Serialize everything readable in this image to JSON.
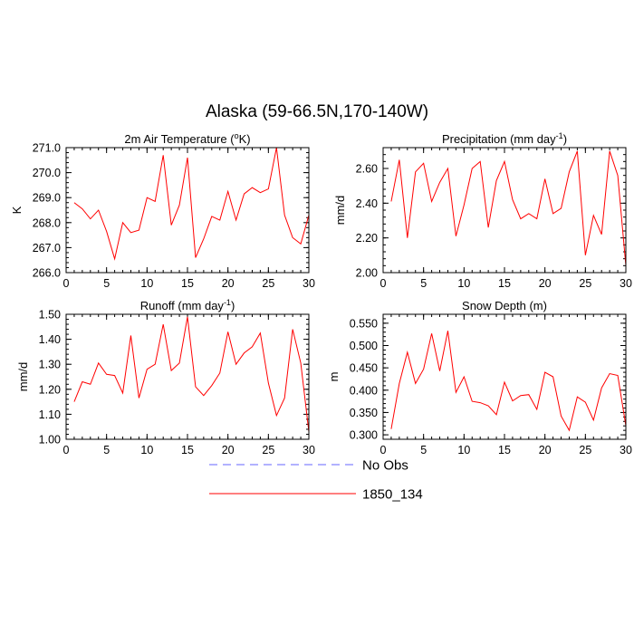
{
  "figure": {
    "title": "Alaska (59-66.5N,170-140W)"
  },
  "legend": {
    "position": "bottom-center",
    "entries": [
      {
        "label": "No Obs",
        "color": "#6666ff",
        "dash": "dashed"
      },
      {
        "label": "1850_134",
        "color": "#ff0000",
        "dash": "solid"
      }
    ]
  },
  "chart_data": [
    {
      "type": "line",
      "title": "2m Air Temperature (°K)",
      "title_parts": {
        "pre": "2m Air Temperature (",
        "sup": "o",
        "post": "K)"
      },
      "ylabel": "K",
      "xlim": [
        0,
        30
      ],
      "ylim": [
        266.0,
        271.0
      ],
      "xticks": [
        0,
        5,
        10,
        15,
        20,
        25,
        30
      ],
      "xtick_labels": [
        "0",
        "5",
        "10",
        "15",
        "20",
        "25",
        "30"
      ],
      "yticks": [
        266.0,
        267.0,
        268.0,
        269.0,
        270.0,
        271.0
      ],
      "ytick_labels": [
        "266.0",
        "267.0",
        "268.0",
        "269.0",
        "270.0",
        "271.0"
      ],
      "series": [
        {
          "name": "1850_134",
          "color": "#ff0000",
          "x": [
            1,
            2,
            3,
            4,
            5,
            6,
            7,
            8,
            9,
            10,
            11,
            12,
            13,
            14,
            15,
            16,
            17,
            18,
            19,
            20,
            21,
            22,
            23,
            24,
            25,
            26,
            27,
            28,
            29,
            30
          ],
          "y": [
            268.8,
            268.55,
            268.15,
            268.5,
            267.65,
            266.55,
            268.0,
            267.6,
            267.7,
            269.0,
            268.85,
            270.7,
            267.9,
            268.7,
            270.6,
            266.6,
            267.35,
            268.25,
            268.1,
            269.25,
            268.1,
            269.15,
            269.4,
            269.2,
            269.35,
            271.0,
            268.3,
            267.4,
            267.15,
            268.3
          ]
        }
      ]
    },
    {
      "type": "line",
      "title": "Precipitation (mm day-1)",
      "title_parts": {
        "pre": "Precipitation (mm day",
        "sup": "-1",
        "post": ")"
      },
      "ylabel": "mm/d",
      "xlim": [
        0,
        30
      ],
      "ylim": [
        2.0,
        2.72
      ],
      "xticks": [
        0,
        5,
        10,
        15,
        20,
        25,
        30
      ],
      "xtick_labels": [
        "0",
        "5",
        "10",
        "15",
        "20",
        "25",
        "30"
      ],
      "yticks": [
        2.0,
        2.2,
        2.4,
        2.6
      ],
      "ytick_labels": [
        "2.00",
        "2.20",
        "2.40",
        "2.60"
      ],
      "series": [
        {
          "name": "1850_134",
          "color": "#ff0000",
          "x": [
            1,
            2,
            3,
            4,
            5,
            6,
            7,
            8,
            9,
            10,
            11,
            12,
            13,
            14,
            15,
            16,
            17,
            18,
            19,
            20,
            21,
            22,
            23,
            24,
            25,
            26,
            27,
            28,
            29,
            30
          ],
          "y": [
            2.41,
            2.65,
            2.2,
            2.58,
            2.63,
            2.41,
            2.52,
            2.6,
            2.21,
            2.39,
            2.6,
            2.64,
            2.26,
            2.53,
            2.64,
            2.42,
            2.31,
            2.34,
            2.31,
            2.54,
            2.34,
            2.37,
            2.58,
            2.7,
            2.1,
            2.33,
            2.22,
            2.7,
            2.56,
            2.04
          ]
        }
      ]
    },
    {
      "type": "line",
      "title": "Runoff (mm day-1)",
      "title_parts": {
        "pre": "Runoff (mm day",
        "sup": "-1",
        "post": ")"
      },
      "ylabel": "mm/d",
      "xlim": [
        0,
        30
      ],
      "ylim": [
        1.0,
        1.5
      ],
      "xticks": [
        0,
        5,
        10,
        15,
        20,
        25,
        30
      ],
      "xtick_labels": [
        "0",
        "5",
        "10",
        "15",
        "20",
        "25",
        "30"
      ],
      "yticks": [
        1.0,
        1.1,
        1.2,
        1.3,
        1.4,
        1.5
      ],
      "ytick_labels": [
        "1.00",
        "1.10",
        "1.20",
        "1.30",
        "1.40",
        "1.50"
      ],
      "series": [
        {
          "name": "1850_134",
          "color": "#ff0000",
          "x": [
            1,
            2,
            3,
            4,
            5,
            6,
            7,
            8,
            9,
            10,
            11,
            12,
            13,
            14,
            15,
            16,
            17,
            18,
            19,
            20,
            21,
            22,
            23,
            24,
            25,
            26,
            27,
            28,
            29,
            30
          ],
          "y": [
            1.15,
            1.23,
            1.22,
            1.305,
            1.26,
            1.255,
            1.185,
            1.415,
            1.165,
            1.28,
            1.3,
            1.46,
            1.275,
            1.305,
            1.49,
            1.21,
            1.175,
            1.215,
            1.265,
            1.43,
            1.3,
            1.345,
            1.37,
            1.425,
            1.225,
            1.095,
            1.165,
            1.44,
            1.305,
            1.03
          ]
        }
      ]
    },
    {
      "type": "line",
      "title": "Snow Depth (m)",
      "title_parts": {
        "pre": "Snow Depth (m)",
        "sup": "",
        "post": ""
      },
      "ylabel": "m",
      "xlim": [
        0,
        30
      ],
      "ylim": [
        0.29,
        0.57
      ],
      "xticks": [
        0,
        5,
        10,
        15,
        20,
        25,
        30
      ],
      "xtick_labels": [
        "0",
        "5",
        "10",
        "15",
        "20",
        "25",
        "30"
      ],
      "yticks": [
        0.3,
        0.35,
        0.4,
        0.45,
        0.5,
        0.55
      ],
      "ytick_labels": [
        "0.300",
        "0.350",
        "0.400",
        "0.450",
        "0.500",
        "0.550"
      ],
      "series": [
        {
          "name": "1850_134",
          "color": "#ff0000",
          "x": [
            1,
            2,
            3,
            4,
            5,
            6,
            7,
            8,
            9,
            10,
            11,
            12,
            13,
            14,
            15,
            16,
            17,
            18,
            19,
            20,
            21,
            22,
            23,
            24,
            25,
            26,
            27,
            28,
            29,
            30
          ],
          "y": [
            0.313,
            0.415,
            0.485,
            0.415,
            0.447,
            0.527,
            0.443,
            0.533,
            0.395,
            0.43,
            0.375,
            0.372,
            0.365,
            0.345,
            0.418,
            0.376,
            0.388,
            0.39,
            0.357,
            0.44,
            0.43,
            0.342,
            0.31,
            0.385,
            0.373,
            0.333,
            0.405,
            0.437,
            0.433,
            0.32
          ]
        }
      ]
    }
  ]
}
